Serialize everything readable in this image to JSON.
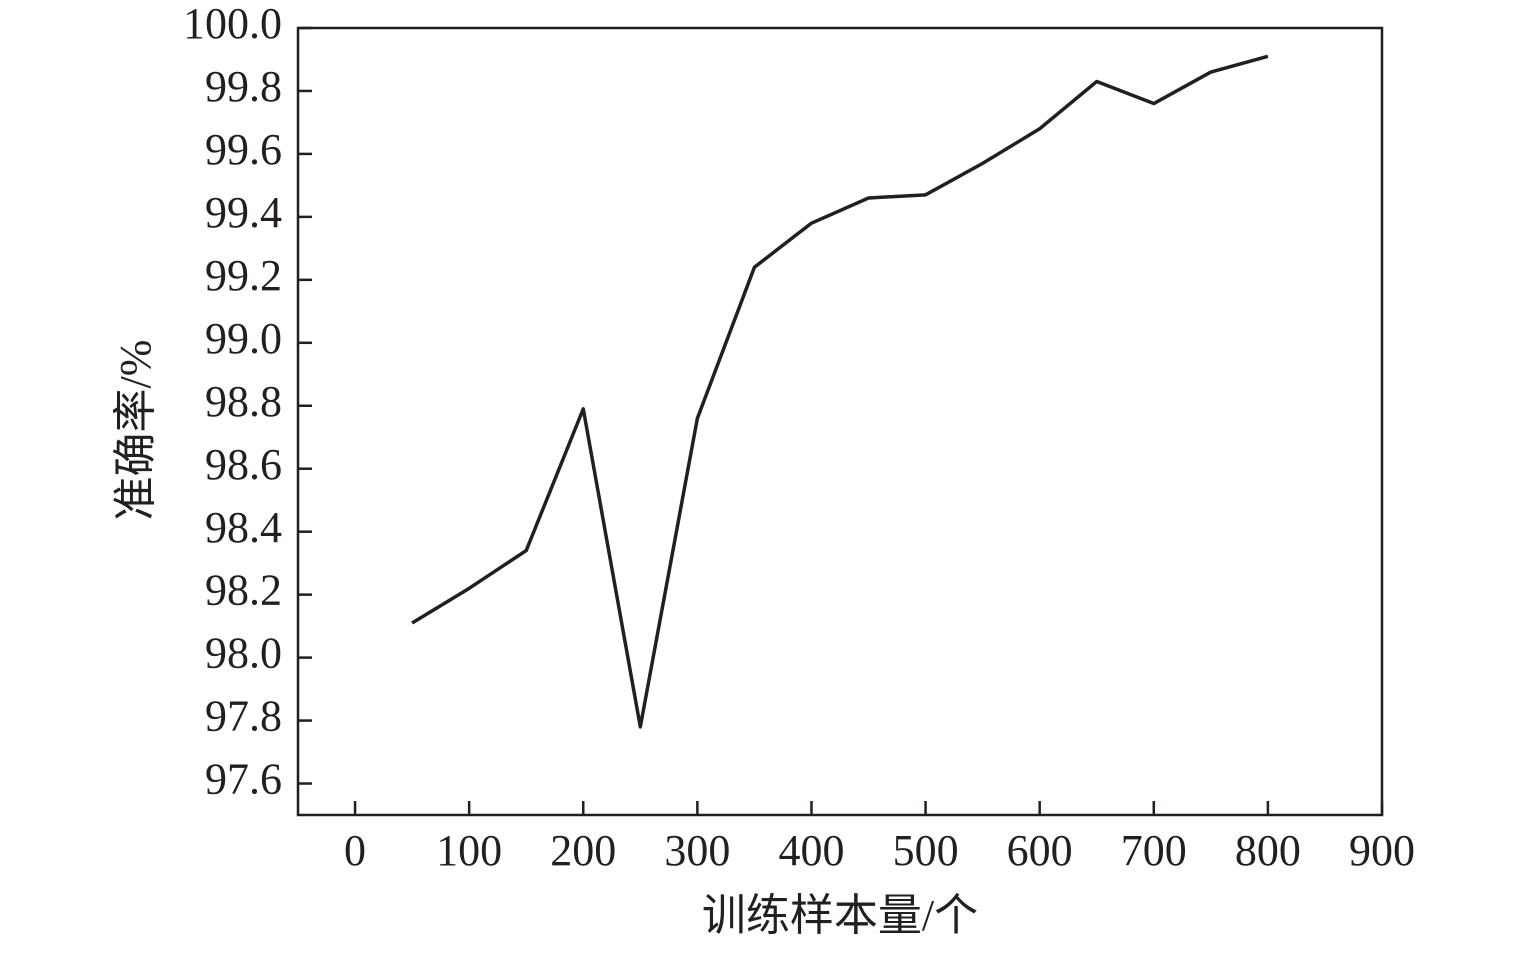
{
  "chart_data": {
    "type": "line",
    "x_label": "训练样本量/个",
    "y_label": "准确率/%",
    "x": [
      50,
      100,
      150,
      200,
      250,
      300,
      350,
      400,
      450,
      500,
      550,
      600,
      650,
      700,
      750,
      800
    ],
    "series": [
      {
        "color": "#231f20",
        "values": [
          98.11,
          98.22,
          98.34,
          98.79,
          97.78,
          98.76,
          99.24,
          99.38,
          99.46,
          99.47,
          99.57,
          99.68,
          99.83,
          99.76,
          99.86,
          99.91
        ]
      }
    ],
    "xlim": [
      -50,
      900
    ],
    "xticks": [
      0,
      100,
      200,
      300,
      400,
      500,
      600,
      700,
      800,
      900
    ],
    "ylim": [
      97.5,
      100.0
    ],
    "yticks": [
      {
        "value": 97.6,
        "label": "97.6"
      },
      {
        "value": 97.8,
        "label": "97.8"
      },
      {
        "value": 98.0,
        "label": "98.0"
      },
      {
        "value": 98.2,
        "label": "98.2"
      },
      {
        "value": 98.4,
        "label": "98.4"
      },
      {
        "value": 98.6,
        "label": "98.6"
      },
      {
        "value": 98.8,
        "label": "98.8"
      },
      {
        "value": 99.0,
        "label": "99.0"
      },
      {
        "value": 99.2,
        "label": "99.2"
      },
      {
        "value": 99.4,
        "label": "99.4"
      },
      {
        "value": 99.6,
        "label": "99.6"
      },
      {
        "value": 99.8,
        "label": "99.8"
      },
      {
        "value": 100.0,
        "label": "100.0"
      }
    ]
  }
}
